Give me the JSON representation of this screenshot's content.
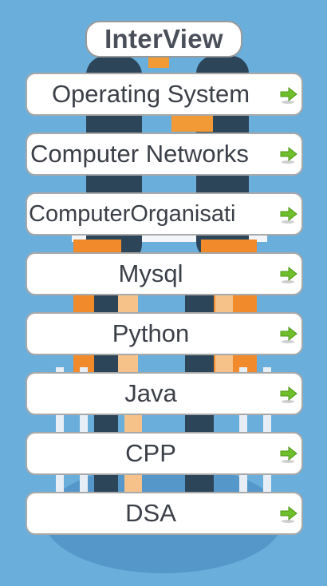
{
  "app": {
    "title": "InterView"
  },
  "menu": {
    "items": [
      {
        "label": "Operating System"
      },
      {
        "label": "Computer Networks"
      },
      {
        "label": "ComputerOrganisati"
      },
      {
        "label": "Mysql"
      },
      {
        "label": "Python"
      },
      {
        "label": "Java"
      },
      {
        "label": "CPP"
      },
      {
        "label": "DSA"
      }
    ],
    "arrow_icon": "green-arrow-right-icon"
  },
  "colors": {
    "background": "#6aaedc",
    "item_background": "#ffffff",
    "item_border": "#a9a9a9",
    "text": "#3b3f47",
    "arrow": "#6fbf2a"
  }
}
